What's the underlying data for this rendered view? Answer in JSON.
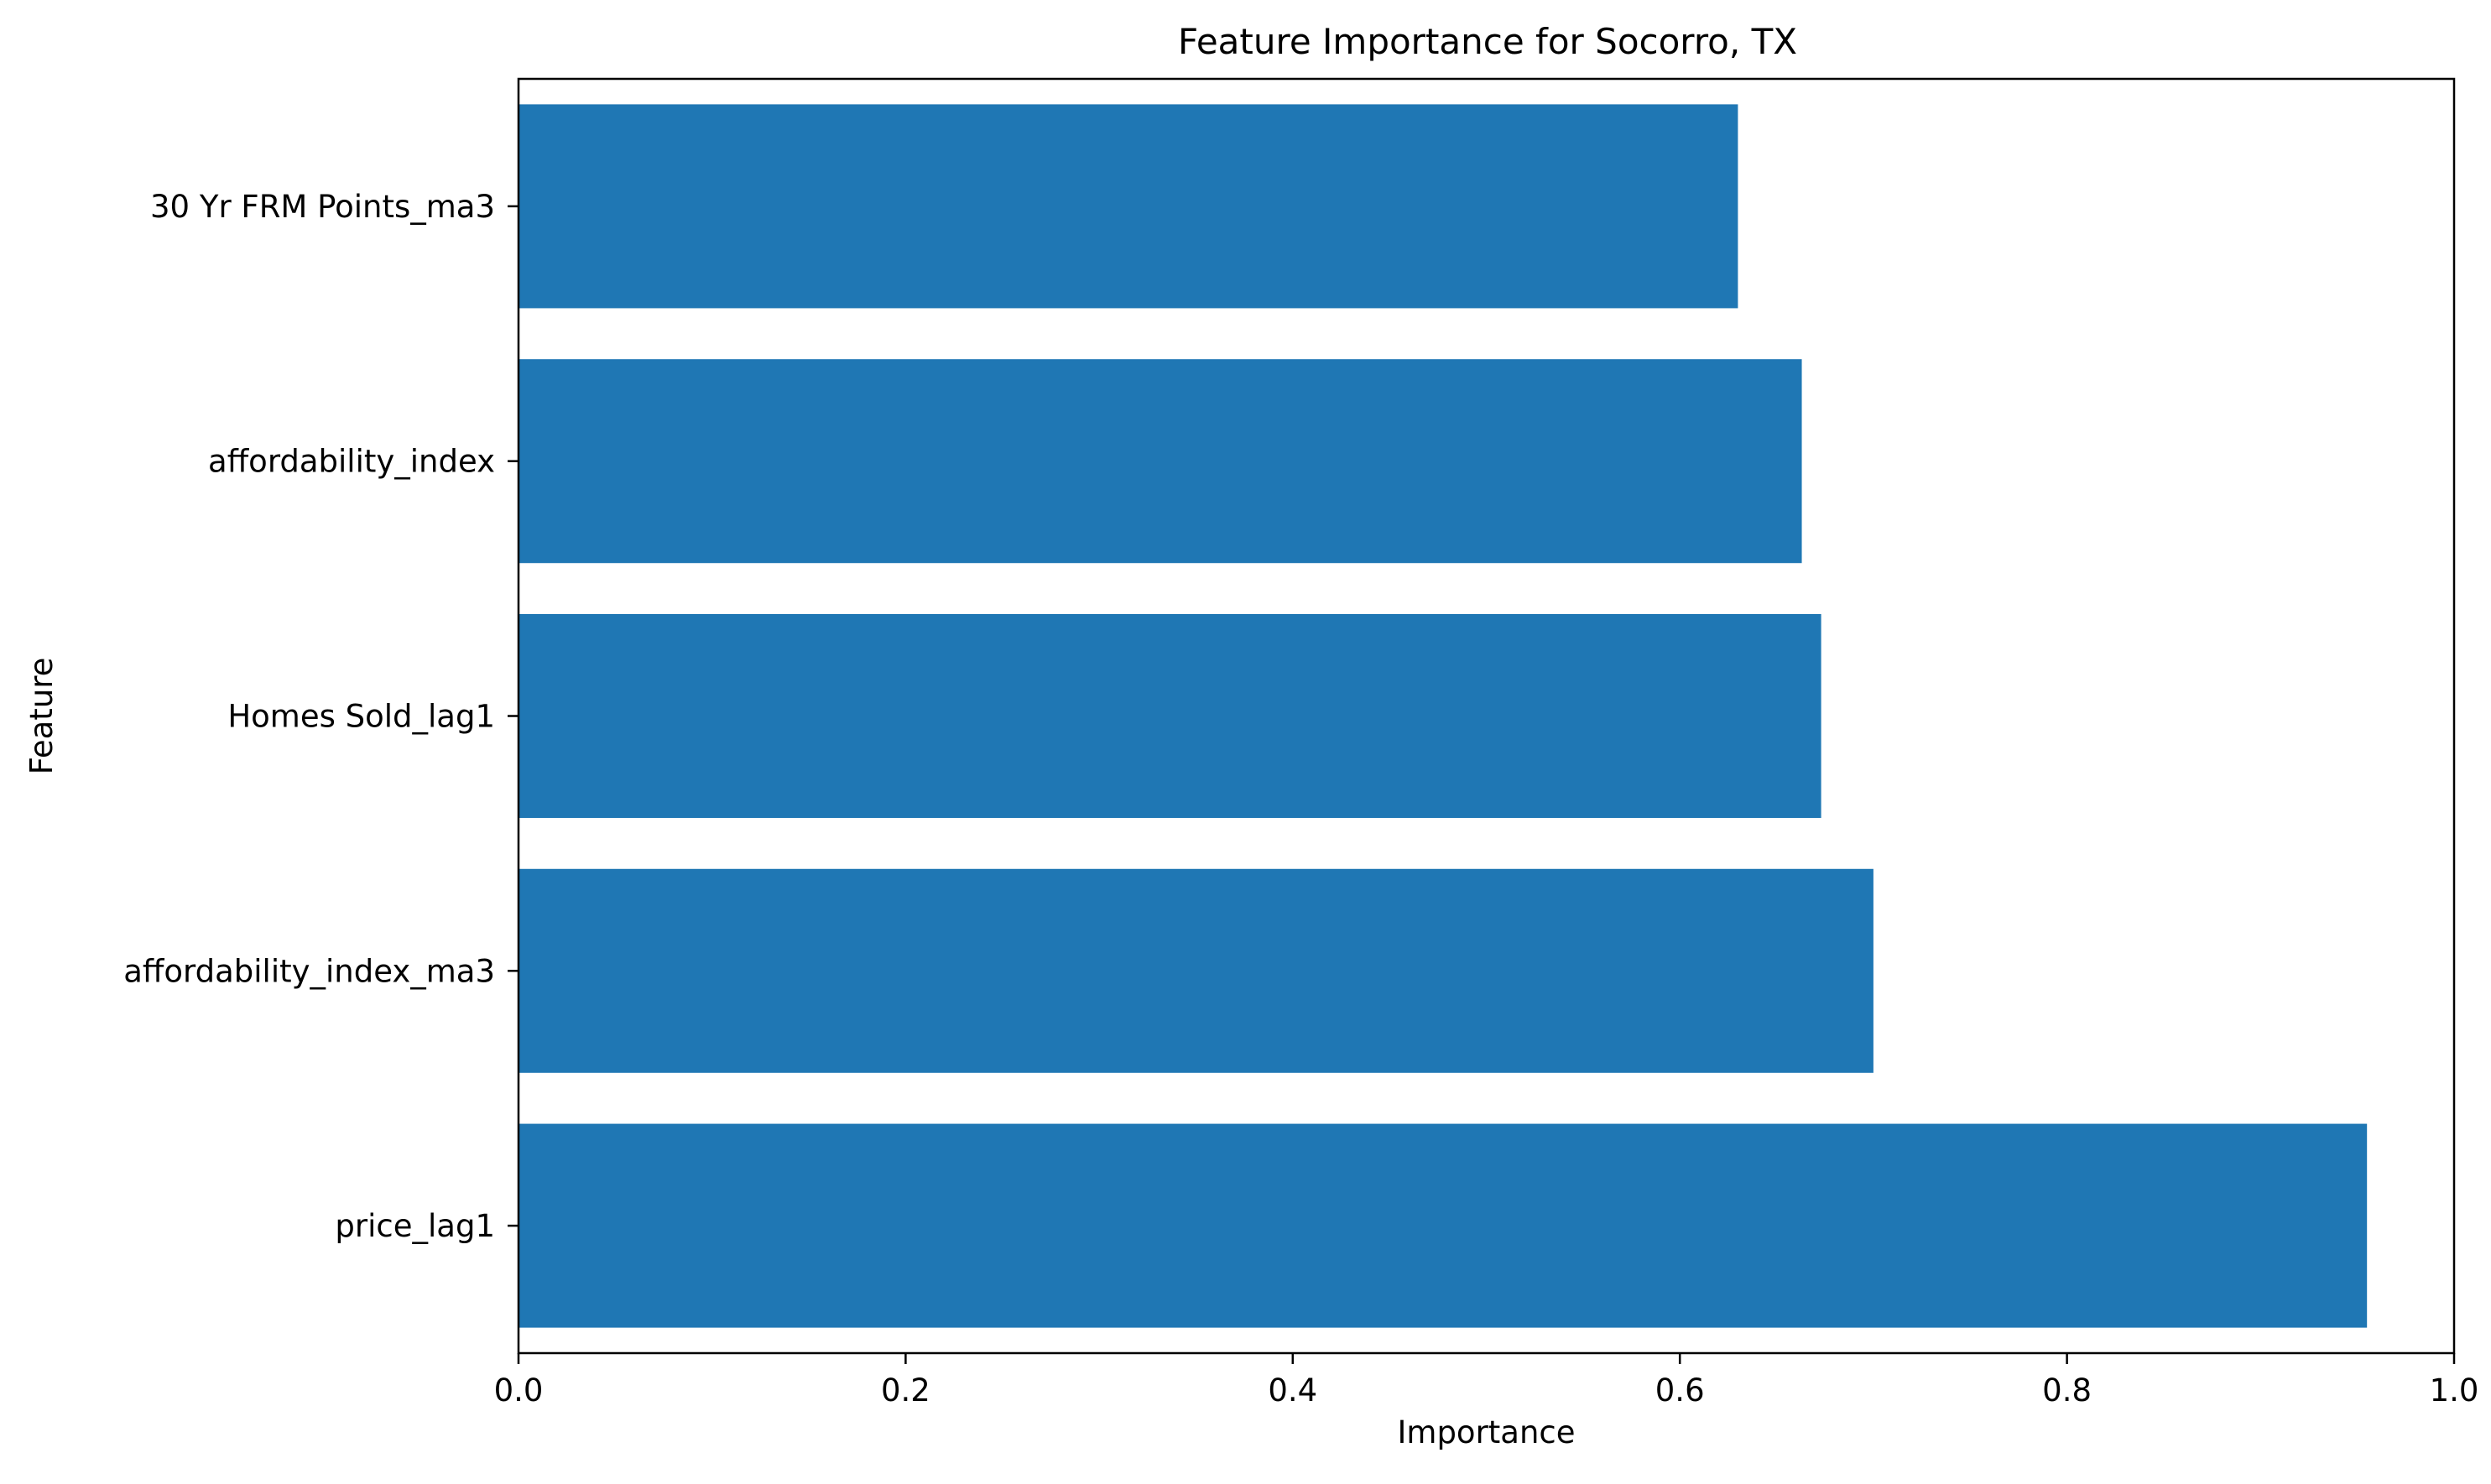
{
  "chart_data": {
    "type": "bar",
    "orientation": "horizontal",
    "title": "Feature Importance for Socorro, TX",
    "xlabel": "Importance",
    "ylabel": "Feature",
    "categories": [
      "price_lag1",
      "affordability_index_ma3",
      "Homes Sold_lag1",
      "affordability_index",
      "30 Yr FRM Points_ma3"
    ],
    "values": [
      0.955,
      0.7,
      0.673,
      0.663,
      0.63
    ],
    "xlim": [
      0,
      1.0
    ],
    "xticks": [
      0.0,
      0.2,
      0.4,
      0.6,
      0.8,
      1.0
    ],
    "xtick_labels": [
      "0.0",
      "0.2",
      "0.4",
      "0.6",
      "0.8",
      "1.0"
    ],
    "grid": false,
    "legend": "none",
    "bar_color": "#1f77b4"
  }
}
